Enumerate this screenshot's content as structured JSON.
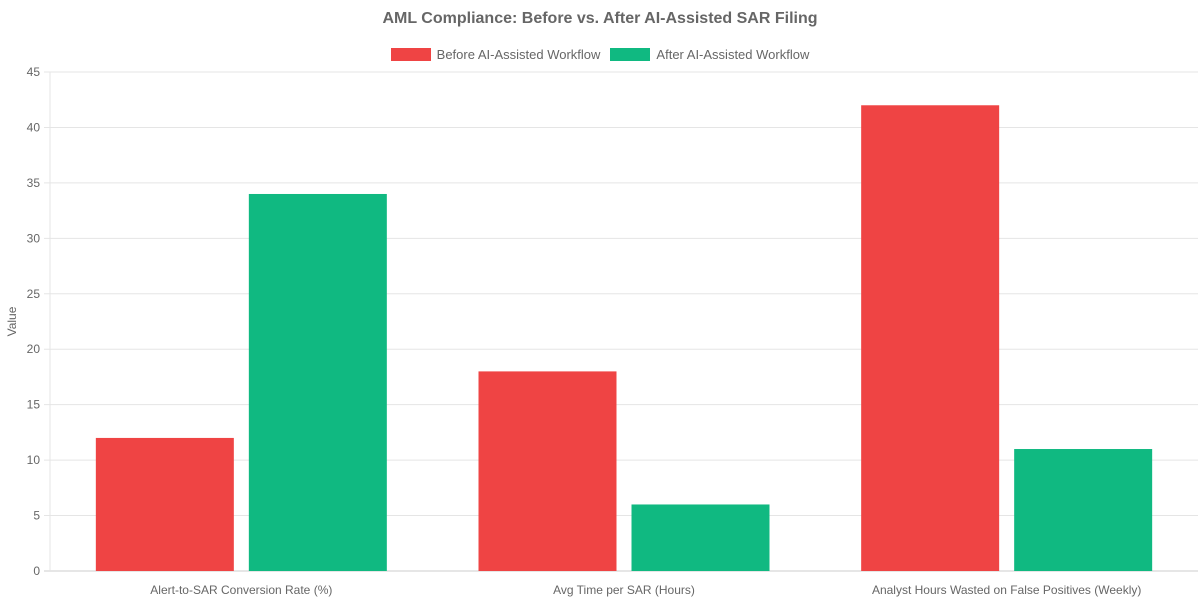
{
  "chart_data": {
    "type": "bar",
    "title": "AML Compliance: Before vs. After AI-Assisted SAR Filing",
    "xlabel": "",
    "ylabel": "Value",
    "ylim": [
      0,
      45
    ],
    "yticks": [
      0,
      5,
      10,
      15,
      20,
      25,
      30,
      35,
      40,
      45
    ],
    "grid": true,
    "legend_position": "top",
    "categories": [
      "Alert-to-SAR Conversion Rate (%)",
      "Avg Time per SAR (Hours)",
      "Analyst Hours Wasted on False Positives (Weekly)"
    ],
    "series": [
      {
        "name": "Before AI-Assisted Workflow",
        "color": "#ef4444",
        "values": [
          12,
          18,
          42
        ]
      },
      {
        "name": "After AI-Assisted Workflow",
        "color": "#10b981",
        "values": [
          34,
          6,
          11
        ]
      }
    ]
  }
}
